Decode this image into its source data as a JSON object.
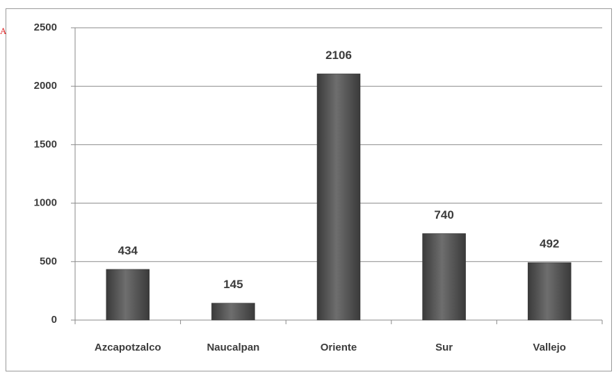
{
  "annotation": "A",
  "chart_data": {
    "type": "bar",
    "categories": [
      "Azcapotzalco",
      "Naucalpan",
      "Oriente",
      "Sur",
      "Vallejo"
    ],
    "values": [
      434,
      145,
      2106,
      740,
      492
    ],
    "color": "#5a5a5a",
    "ylim": [
      0,
      2500
    ],
    "yticks": [
      0,
      500,
      1000,
      1500,
      2000,
      2500
    ],
    "grid": true
  }
}
